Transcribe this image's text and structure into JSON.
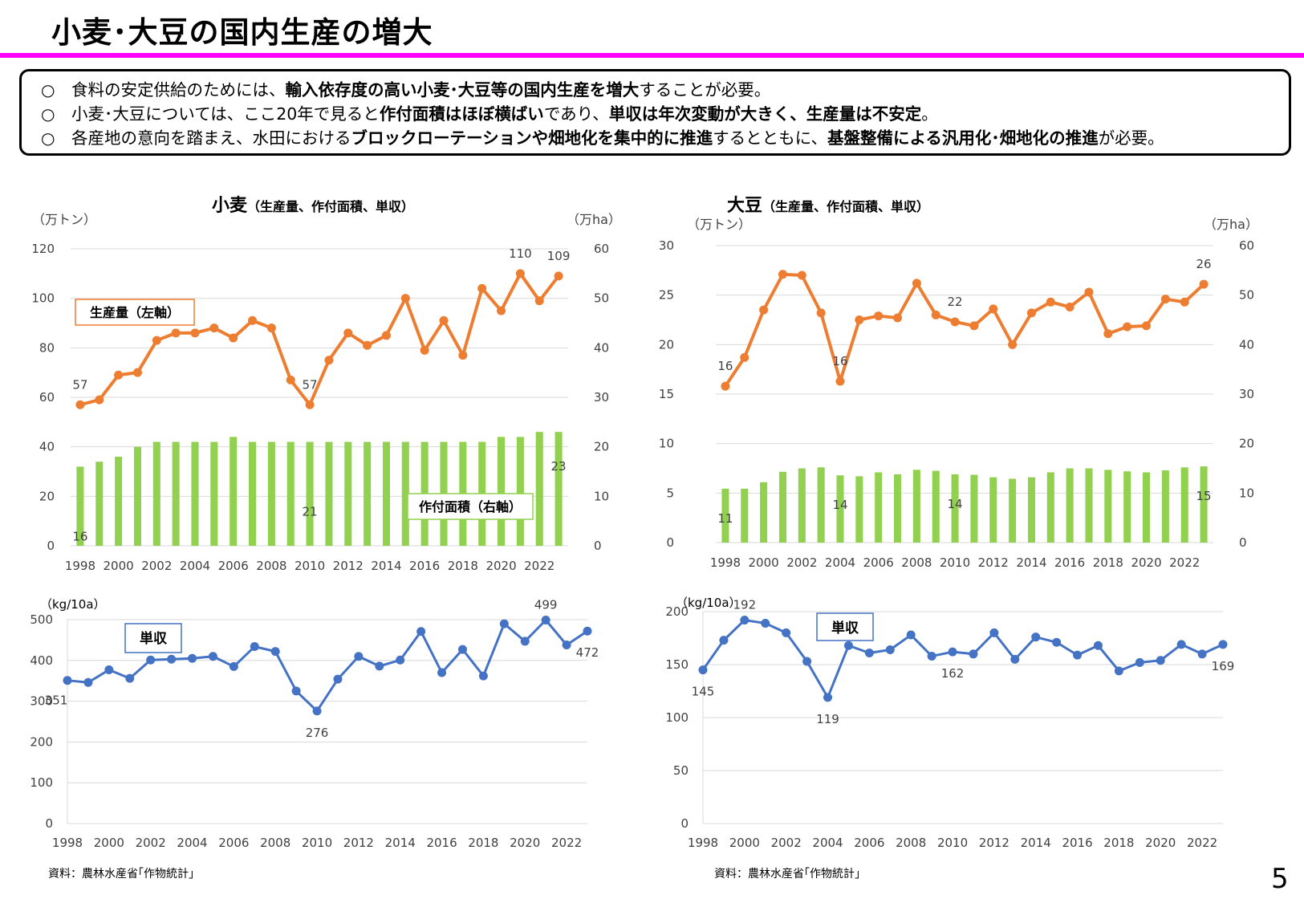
{
  "page": {
    "title": "小麦･大豆の国内生産の増大",
    "page_number": "5",
    "source_left": "資料：農林水産省｢作物統計｣",
    "source_right": "資料：農林水産省｢作物統計｣"
  },
  "summary": {
    "bullet_symbol": "○",
    "lines": [
      [
        {
          "text": "食料の安定供給のためには、",
          "bold": false
        },
        {
          "text": "輸入依存度の高い小麦･大豆等の国内生産を増大",
          "bold": true
        },
        {
          "text": "することが必要。",
          "bold": false
        }
      ],
      [
        {
          "text": "小麦･大豆については、ここ20年で見ると",
          "bold": false
        },
        {
          "text": "作付面積はほぼ横ばい",
          "bold": true
        },
        {
          "text": "であり、",
          "bold": false
        },
        {
          "text": "単収は年次変動が大きく、生産量は不安定",
          "bold": true
        },
        {
          "text": "。",
          "bold": false
        }
      ],
      [
        {
          "text": "各産地の意向を踏まえ、水田における",
          "bold": false
        },
        {
          "text": "ブロックローテーションや畑地化を集中的に推進",
          "bold": true
        },
        {
          "text": "するとともに、",
          "bold": false
        },
        {
          "text": "基盤整備による汎用化･畑地化の推進",
          "bold": true
        },
        {
          "text": "が必要。",
          "bold": false
        }
      ]
    ]
  },
  "colors": {
    "production_line": "#ed7d31",
    "area_bars": "#92d050",
    "yield_line": "#4472c4",
    "title_rule": "#ff00ff"
  },
  "chart_data": [
    {
      "id": "wheat-main",
      "type": "bar+line",
      "title": "小麦",
      "subtitle": "（生産量、作付面積、単収）",
      "ylabel_left": "（万トン）",
      "ylabel_right": "（万ha）",
      "ylim_left": [
        0,
        120
      ],
      "ylim_right": [
        0,
        60
      ],
      "yticks_left": [
        0,
        20,
        40,
        60,
        80,
        100,
        120
      ],
      "yticks_right": [
        0,
        10,
        20,
        30,
        40,
        50,
        60
      ],
      "x": [
        1998,
        1999,
        2000,
        2001,
        2002,
        2003,
        2004,
        2005,
        2006,
        2007,
        2008,
        2009,
        2010,
        2011,
        2012,
        2013,
        2014,
        2015,
        2016,
        2017,
        2018,
        2019,
        2020,
        2021,
        2022,
        2023
      ],
      "xtick_labels": [
        "1998",
        "2000",
        "2002",
        "2004",
        "2006",
        "2008",
        "2010",
        "2012",
        "2014",
        "2016",
        "2018",
        "2020",
        "2022"
      ],
      "grid": true,
      "series": [
        {
          "name": "生産量（左軸）",
          "kind": "line",
          "axis": "left",
          "values": [
            57,
            59,
            69,
            70,
            83,
            86,
            86,
            88,
            84,
            91,
            88,
            67,
            57,
            75,
            86,
            81,
            85,
            100,
            79,
            91,
            77,
            104,
            95,
            110,
            99,
            109
          ],
          "labels": {
            "0": "57",
            "12": "57",
            "23": "110",
            "25": "109"
          }
        },
        {
          "name": "作付面積（右軸）",
          "kind": "bar",
          "axis": "right",
          "values": [
            16,
            17,
            18,
            20,
            21,
            21,
            21,
            21,
            22,
            21,
            21,
            21,
            21,
            21,
            21,
            21,
            21,
            21,
            21,
            21,
            21,
            21,
            22,
            22,
            23,
            23
          ],
          "labels": {
            "0": "16",
            "12": "21",
            "25": "23"
          }
        }
      ]
    },
    {
      "id": "soybean-main",
      "type": "bar+line",
      "title": "大豆",
      "subtitle": "（生産量、作付面積、単収）",
      "ylabel_left": "（万トン）",
      "ylabel_right": "（万ha）",
      "ylim_left": [
        0,
        30
      ],
      "ylim_right": [
        0,
        60
      ],
      "yticks_left": [
        0,
        5,
        10,
        15,
        20,
        25,
        30
      ],
      "yticks_right": [
        0,
        10,
        20,
        30,
        40,
        50,
        60
      ],
      "x": [
        1998,
        1999,
        2000,
        2001,
        2002,
        2003,
        2004,
        2005,
        2006,
        2007,
        2008,
        2009,
        2010,
        2011,
        2012,
        2013,
        2014,
        2015,
        2016,
        2017,
        2018,
        2019,
        2020,
        2021,
        2022,
        2023
      ],
      "xtick_labels": [
        "1998",
        "2000",
        "2002",
        "2004",
        "2006",
        "2008",
        "2010",
        "2012",
        "2014",
        "2016",
        "2018",
        "2020",
        "2022"
      ],
      "grid": true,
      "series": [
        {
          "name": "生産量",
          "kind": "line",
          "axis": "left",
          "values": [
            15.8,
            18.7,
            23.5,
            27.1,
            27.0,
            23.2,
            16.3,
            22.5,
            22.9,
            22.7,
            26.2,
            23.0,
            22.3,
            21.9,
            23.6,
            20.0,
            23.2,
            24.3,
            23.8,
            25.3,
            21.1,
            21.8,
            21.9,
            24.6,
            24.3,
            26.1
          ],
          "labels": {
            "0": "16",
            "6": "16",
            "12": "22",
            "25": "26"
          }
        },
        {
          "name": "作付面積",
          "kind": "bar",
          "axis": "right",
          "values": [
            10.9,
            10.9,
            12.2,
            14.3,
            15.0,
            15.2,
            13.6,
            13.4,
            14.2,
            13.8,
            14.7,
            14.5,
            13.8,
            13.7,
            13.2,
            12.9,
            13.2,
            14.2,
            15.0,
            15.0,
            14.7,
            14.4,
            14.2,
            14.6,
            15.2,
            15.4
          ],
          "labels": {
            "0": "11",
            "6": "14",
            "12": "14",
            "25": "15"
          }
        }
      ]
    },
    {
      "id": "wheat-yield",
      "type": "line",
      "title": "単収",
      "ylabel": "（kg/10a）",
      "ylim": [
        0,
        500
      ],
      "yticks": [
        0,
        100,
        200,
        300,
        400,
        500
      ],
      "x": [
        1998,
        1999,
        2000,
        2001,
        2002,
        2003,
        2004,
        2005,
        2006,
        2007,
        2008,
        2009,
        2010,
        2011,
        2012,
        2013,
        2014,
        2015,
        2016,
        2017,
        2018,
        2019,
        2020,
        2021,
        2022,
        2023
      ],
      "xtick_labels": [
        "1998",
        "2000",
        "2002",
        "2004",
        "2006",
        "2008",
        "2010",
        "2012",
        "2014",
        "2016",
        "2018",
        "2020",
        "2022"
      ],
      "grid": true,
      "series": [
        {
          "name": "単収",
          "kind": "line",
          "values": [
            351,
            346,
            377,
            356,
            401,
            403,
            405,
            410,
            385,
            434,
            422,
            325,
            276,
            354,
            410,
            386,
            401,
            471,
            370,
            427,
            362,
            490,
            447,
            499,
            438,
            472
          ],
          "labels": {
            "0": "351",
            "12": "276",
            "23": "499",
            "25": "472"
          }
        }
      ]
    },
    {
      "id": "soybean-yield",
      "type": "line",
      "title": "単収",
      "ylabel": "（kg/10a）",
      "ylim": [
        0,
        200
      ],
      "yticks": [
        0,
        50,
        100,
        150,
        200
      ],
      "x": [
        1998,
        1999,
        2000,
        2001,
        2002,
        2003,
        2004,
        2005,
        2006,
        2007,
        2008,
        2009,
        2010,
        2011,
        2012,
        2013,
        2014,
        2015,
        2016,
        2017,
        2018,
        2019,
        2020,
        2021,
        2022,
        2023
      ],
      "xtick_labels": [
        "1998",
        "2000",
        "2002",
        "2004",
        "2006",
        "2008",
        "2010",
        "2012",
        "2014",
        "2016",
        "2018",
        "2020",
        "2022"
      ],
      "grid": true,
      "series": [
        {
          "name": "単収",
          "kind": "line",
          "values": [
            145,
            173,
            192,
            189,
            180,
            153,
            119,
            168,
            161,
            164,
            178,
            158,
            162,
            160,
            180,
            155,
            176,
            171,
            159,
            168,
            144,
            152,
            154,
            169,
            160,
            169
          ],
          "labels": {
            "0": "145",
            "2": "192",
            "6": "119",
            "12": "162",
            "25": "169"
          }
        }
      ]
    }
  ]
}
